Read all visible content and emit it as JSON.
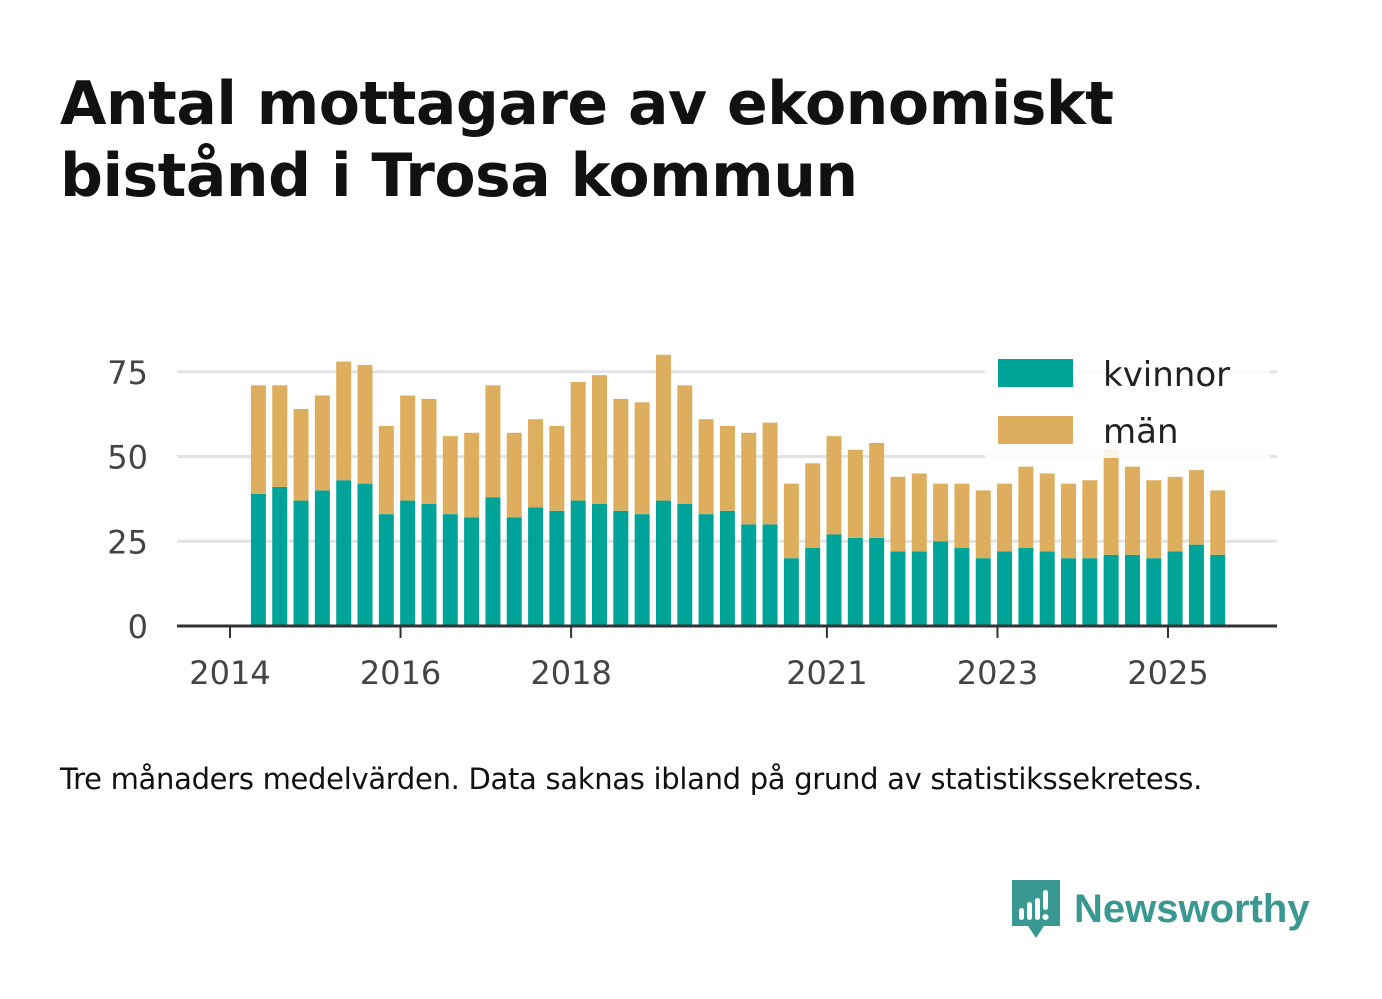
{
  "title": "Antal mottagare av ekonomiskt bistånd i Trosa kommun",
  "note": "Tre månaders medelvärden. Data saknas ibland på grund av statistikssekretess.",
  "brand": {
    "name": "Newsworthy",
    "icon": "newsworthy-logo-icon",
    "color": "#3a9893"
  },
  "colors": {
    "kvinnor": "#00a398",
    "man": "#dcae5e",
    "grid": "#e3e3e3",
    "axis": "#333333",
    "text": "#444444"
  },
  "chart_data": {
    "type": "bar",
    "stacked": true,
    "x": [
      "2014-05",
      "2014-08",
      "2014-11",
      "2015-02",
      "2015-05",
      "2015-08",
      "2015-11",
      "2016-02",
      "2016-05",
      "2016-08",
      "2016-11",
      "2017-02",
      "2017-05",
      "2017-08",
      "2017-11",
      "2018-02",
      "2018-05",
      "2018-08",
      "2018-11",
      "2019-02",
      "2019-05",
      "2019-08",
      "2019-11",
      "2020-02",
      "2020-05",
      "2020-08",
      "2020-11",
      "2021-02",
      "2021-05",
      "2021-08",
      "2021-11",
      "2022-02",
      "2022-05",
      "2022-08",
      "2022-11",
      "2023-02",
      "2023-05",
      "2023-08",
      "2023-11",
      "2024-02",
      "2024-05",
      "2024-08",
      "2024-11",
      "2025-02",
      "2025-05",
      "2025-08"
    ],
    "series": [
      {
        "name": "kvinnor",
        "values": [
          39,
          41,
          37,
          40,
          43,
          42,
          33,
          37,
          36,
          33,
          32,
          38,
          32,
          35,
          34,
          37,
          36,
          34,
          33,
          37,
          36,
          33,
          34,
          30,
          30,
          20,
          23,
          27,
          26,
          26,
          22,
          22,
          25,
          23,
          20,
          22,
          23,
          22,
          20,
          20,
          21,
          21,
          20,
          22,
          24,
          21
        ]
      },
      {
        "name": "män",
        "values": [
          32,
          30,
          27,
          28,
          35,
          35,
          26,
          31,
          31,
          23,
          25,
          33,
          25,
          26,
          25,
          35,
          38,
          33,
          33,
          43,
          35,
          28,
          25,
          27,
          30,
          22,
          25,
          29,
          26,
          28,
          22,
          23,
          17,
          19,
          20,
          20,
          24,
          23,
          22,
          23,
          31,
          26,
          23,
          22,
          22,
          19
        ]
      }
    ],
    "xticks": [
      {
        "label": "2014",
        "date": "2014-01"
      },
      {
        "label": "2016",
        "date": "2016-01"
      },
      {
        "label": "2018",
        "date": "2018-01"
      },
      {
        "label": "2021",
        "date": "2021-01"
      },
      {
        "label": "2023",
        "date": "2023-01"
      },
      {
        "label": "2025",
        "date": "2025-01"
      }
    ],
    "yticks": [
      0,
      25,
      50,
      75
    ],
    "ylim": [
      0,
      79
    ],
    "grid": true,
    "legend": {
      "placement": "top-right",
      "entries": [
        "kvinnor",
        "män"
      ]
    }
  }
}
